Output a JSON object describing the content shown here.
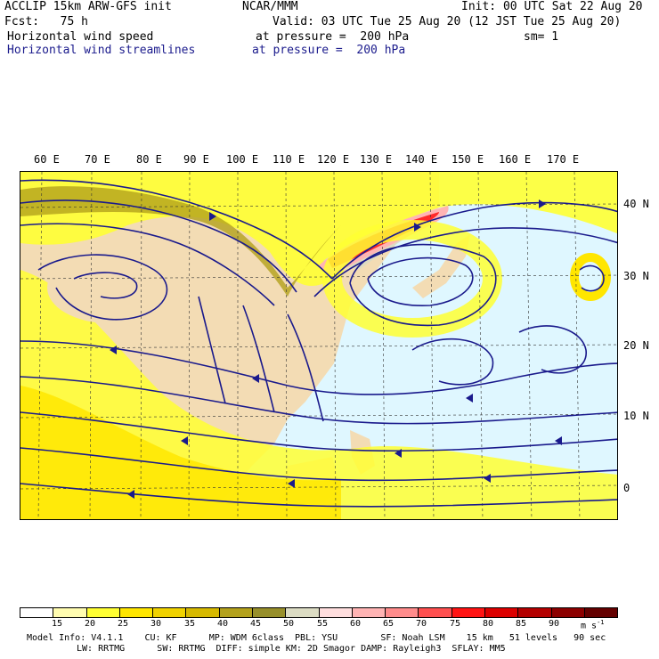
{
  "header": {
    "model": "ACCLIP 15km ARW-GFS init",
    "org": "NCAR/MMM",
    "init": "Init: 00 UTC Sat 22 Aug 20",
    "fcst": "Fcst:   75 h",
    "valid": "Valid: 03 UTC Tue 25 Aug 20 (12 JST Tue 25 Aug 20)",
    "field1": "Horizontal wind speed",
    "field1_level": "at pressure =  200 hPa",
    "sm": "sm= 1",
    "field2": "Horizontal wind streamlines",
    "field2_level": "at pressure =  200 hPa"
  },
  "map": {
    "lon_labels": [
      "60 E",
      "70 E",
      "80 E",
      "90 E",
      "100 E",
      "110 E",
      "120 E",
      "130 E",
      "140 E",
      "150 E",
      "160 E",
      "170 E"
    ],
    "lat_labels": [
      "40 N",
      "30 N",
      "20 N",
      "10 N",
      "0"
    ],
    "colors": {
      "land": "#f3dcb4",
      "ocean_calm": "#dff7ff",
      "streamline": "#1a1a8c",
      "jet_core": "#ff2a2a"
    }
  },
  "colorbar": {
    "labels": [
      "15",
      "20",
      "25",
      "30",
      "35",
      "40",
      "45",
      "50",
      "55",
      "60",
      "65",
      "70",
      "75",
      "80",
      "85",
      "90"
    ],
    "unit": "m s",
    "unit_exp": "-1",
    "colors": [
      "#ffffff",
      "#fffcb0",
      "#ffff33",
      "#ffe600",
      "#f0d200",
      "#d6b900",
      "#b3a11c",
      "#978f2a",
      "#dcdcc3",
      "#ffdede",
      "#ffb4b4",
      "#ff8c8c",
      "#ff5050",
      "#ff1414",
      "#dc0000",
      "#b40000",
      "#8c0000",
      "#640000"
    ]
  },
  "footer": {
    "line1": "Model Info: V4.1.1    CU: KF      MP: WDM 6class  PBL: YSU        SF: Noah LSM    15 km   51 levels   90 sec",
    "line2": "LW: RRTMG      SW: RRTMG  DIFF: simple KM: 2D Smagor DAMP: Rayleigh3  SFLAY: MM5"
  }
}
